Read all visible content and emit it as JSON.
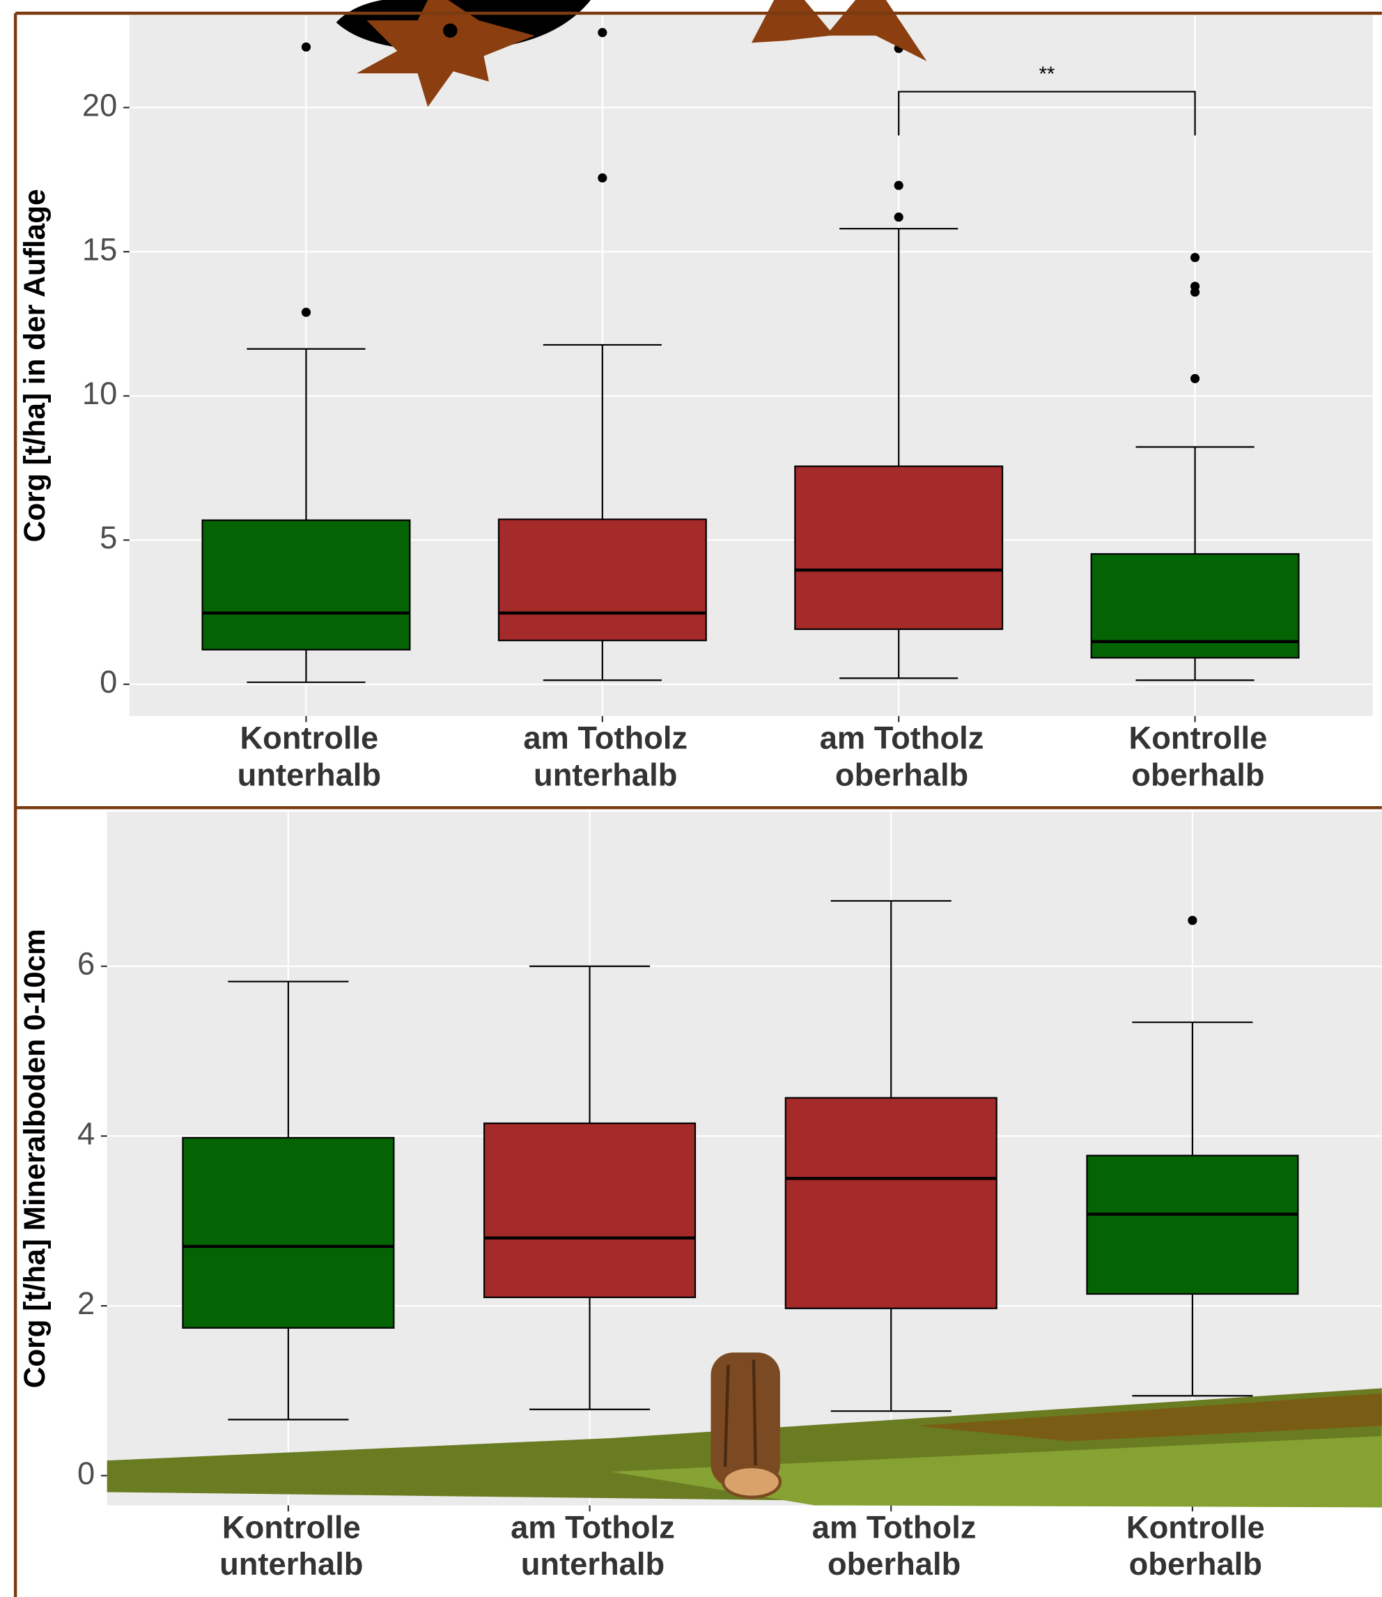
{
  "chart_data": [
    {
      "type": "box",
      "ylabel": "Corg [t/ha] in der Auflage",
      "categories": [
        [
          "Kontrolle",
          "unterhalb"
        ],
        [
          "am Totholz",
          "unterhalb"
        ],
        [
          "am Totholz",
          "oberhalb"
        ],
        [
          "Kontrolle",
          "oberhalb"
        ]
      ],
      "colors": [
        "#046404",
        "#a52a2a",
        "#a52a2a",
        "#046404"
      ],
      "boxes": [
        {
          "whislo": 0.07,
          "q1": 1.2,
          "med": 2.47,
          "q3": 5.69,
          "whishi": 11.63,
          "fliers": [
            12.9,
            22.1
          ]
        },
        {
          "whislo": 0.14,
          "q1": 1.52,
          "med": 2.47,
          "q3": 5.72,
          "whishi": 11.77,
          "fliers": [
            17.56,
            22.6
          ]
        },
        {
          "whislo": 0.21,
          "q1": 1.91,
          "med": 3.96,
          "q3": 7.56,
          "whishi": 15.8,
          "fliers": [
            16.2,
            17.3,
            22.05
          ]
        },
        {
          "whislo": 0.14,
          "q1": 0.92,
          "med": 1.48,
          "q3": 4.52,
          "whishi": 8.23,
          "fliers": [
            10.6,
            13.6,
            13.8,
            14.8
          ]
        }
      ],
      "annotation": "**",
      "ylim": [
        -1.1,
        23.2
      ],
      "yticks": [
        0,
        5,
        10,
        15,
        20
      ],
      "grid": true
    },
    {
      "type": "box",
      "ylabel": "Corg [t/ha] Mineralboden 0-10cm",
      "categories": [
        [
          "Kontrolle",
          "unterhalb"
        ],
        [
          "am Totholz",
          "unterhalb"
        ],
        [
          "am Totholz",
          "oberhalb"
        ],
        [
          "Kontrolle",
          "oberhalb"
        ]
      ],
      "colors": [
        "#046404",
        "#a52a2a",
        "#a52a2a",
        "#046404"
      ],
      "boxes": [
        {
          "whislo": 0.66,
          "q1": 1.74,
          "med": 2.7,
          "q3": 3.98,
          "whishi": 5.82,
          "fliers": []
        },
        {
          "whislo": 0.78,
          "q1": 2.1,
          "med": 2.8,
          "q3": 4.15,
          "whishi": 6.0,
          "fliers": []
        },
        {
          "whislo": 0.76,
          "q1": 1.97,
          "med": 3.5,
          "q3": 4.45,
          "whishi": 6.77,
          "fliers": []
        },
        {
          "whislo": 0.94,
          "q1": 2.14,
          "med": 3.08,
          "q3": 3.77,
          "whishi": 5.34,
          "fliers": [
            6.54
          ]
        }
      ],
      "ylim": [
        -0.35,
        7.82
      ],
      "yticks": [
        0,
        2,
        4,
        6
      ],
      "grid": true
    }
  ]
}
